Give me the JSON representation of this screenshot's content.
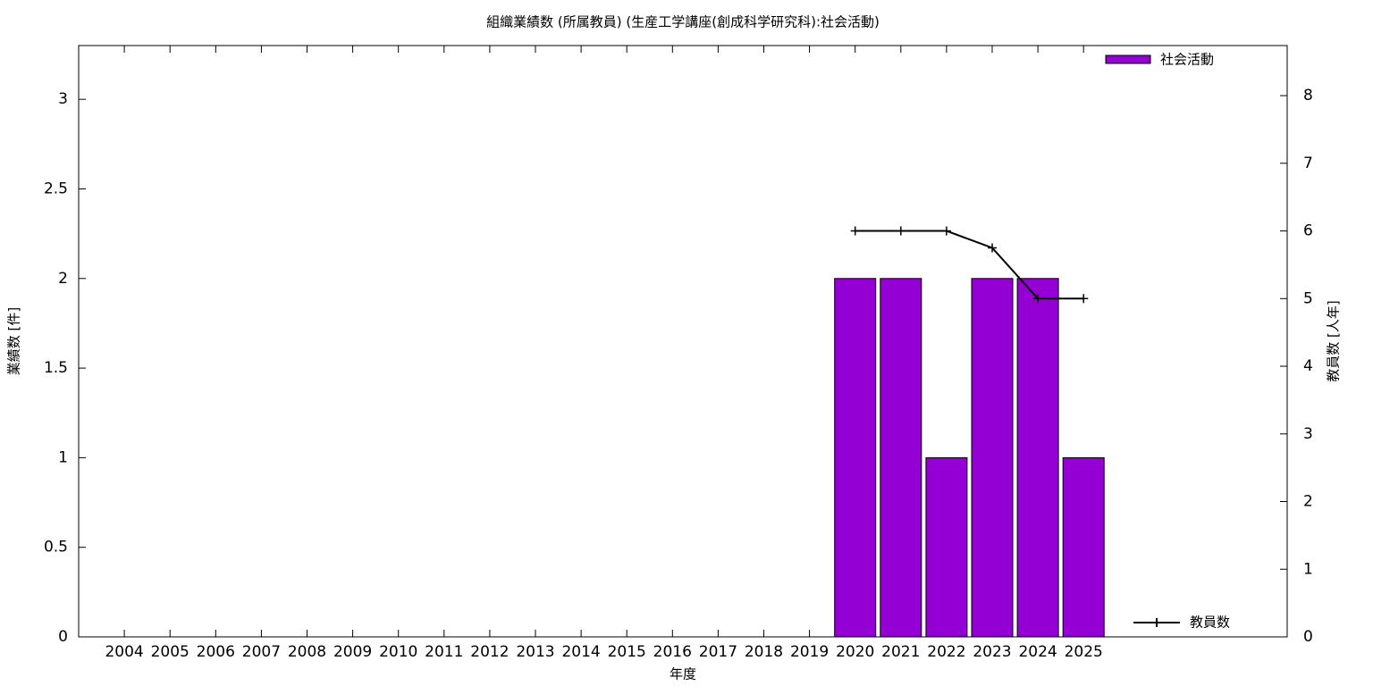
{
  "chart_data": {
    "type": "bar",
    "title": "組織業績数 (所属教員) (生産工学講座(創成科学研究科):社会活動)",
    "x_label": "年度",
    "y_label": "業績数 [件]",
    "y2_label": "教員数 [人年]",
    "categories": [
      "2004",
      "2005",
      "2006",
      "2007",
      "2008",
      "2009",
      "2010",
      "2011",
      "2012",
      "2013",
      "2014",
      "2015",
      "2016",
      "2017",
      "2018",
      "2019",
      "2020",
      "2021",
      "2022",
      "2023",
      "2024",
      "2025"
    ],
    "series": [
      {
        "name": "社会活動",
        "type": "bar",
        "color": "#9400d3",
        "values": [
          null,
          null,
          null,
          null,
          null,
          null,
          null,
          null,
          null,
          null,
          null,
          null,
          null,
          null,
          null,
          null,
          2,
          2,
          1,
          2,
          2,
          1
        ]
      },
      {
        "name": "教員数",
        "type": "line",
        "axis": "y2",
        "color": "#000000",
        "values": [
          null,
          null,
          null,
          null,
          null,
          null,
          null,
          null,
          null,
          null,
          null,
          null,
          null,
          null,
          null,
          null,
          6,
          6,
          6,
          5.75,
          5,
          5
        ]
      }
    ],
    "ylim": [
      0,
      3.3
    ],
    "yticks": [
      0,
      0.5,
      1,
      1.5,
      2,
      2.5,
      3
    ],
    "y2lim": [
      0,
      8.74
    ],
    "y2ticks": [
      0,
      1,
      2,
      3,
      4,
      5,
      6,
      7,
      8
    ]
  }
}
